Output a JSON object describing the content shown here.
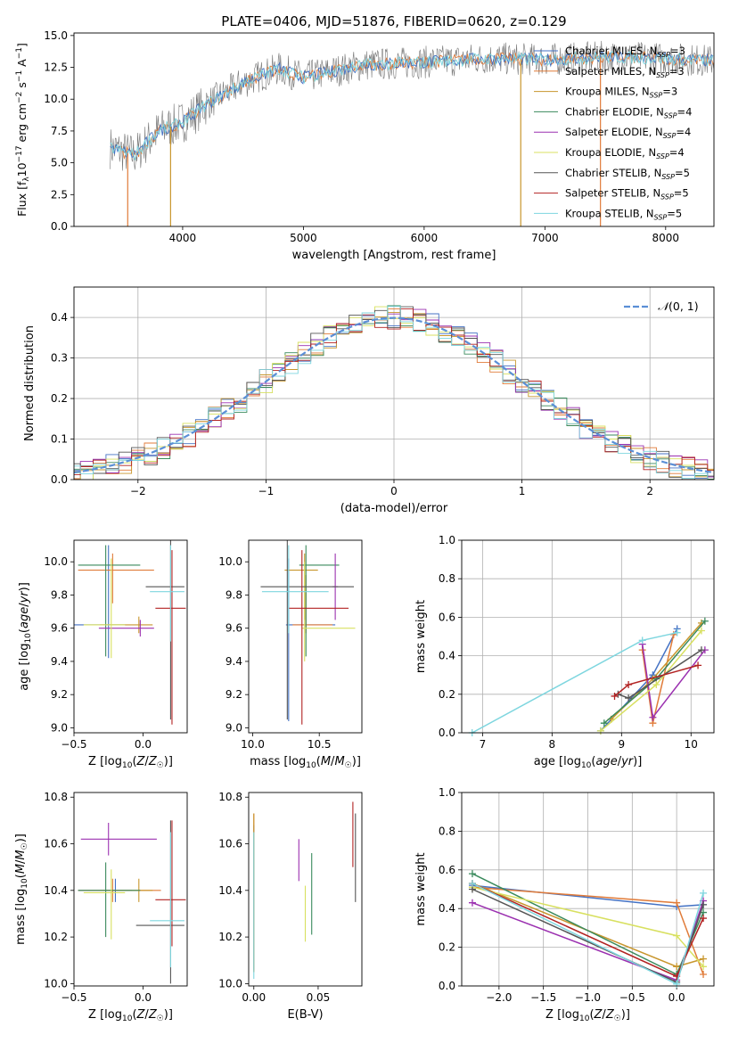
{
  "figure": {
    "title": "PLATE=0406, MJD=51876, FIBERID=0620, z=0.129"
  },
  "series_colors": [
    "#4472c4",
    "#e07b39",
    "#c8962d",
    "#3a8a5c",
    "#9b30b0",
    "#d8e060",
    "#555555",
    "#b22222",
    "#7ed6df"
  ],
  "chart_data": [
    {
      "type": "line",
      "panel": "spectrum",
      "title": "PLATE=0406, MJD=51876, FIBERID=0620, z=0.129",
      "xlabel": "wavelength [Angstrom, rest frame]",
      "ylabel": "Flux [f_λ 10^-17 erg cm^-2 s^-1 A^-1]",
      "xlim": [
        3100,
        8400
      ],
      "ylim": [
        0,
        15.2
      ],
      "xticks": [
        4000,
        5000,
        6000,
        7000,
        8000
      ],
      "yticks": [
        0.0,
        2.5,
        5.0,
        7.5,
        10.0,
        12.5,
        15.0
      ],
      "legend_position": "upper-right",
      "series": [
        {
          "name": "Chabrier MILES, N_SSP=3"
        },
        {
          "name": "Salpeter MILES, N_SSP=3"
        },
        {
          "name": "Kroupa MILES, N_SSP=3"
        },
        {
          "name": "Chabrier ELODIE, N_SSP=4"
        },
        {
          "name": "Salpeter ELODIE, N_SSP=4"
        },
        {
          "name": "Kroupa ELODIE, N_SSP=4"
        },
        {
          "name": "Chabrier STELIB, N_SSP=5"
        },
        {
          "name": "Salpeter STELIB, N_SSP=5"
        },
        {
          "name": "Kroupa STELIB, N_SSP=5"
        }
      ],
      "continuum_x": [
        3400,
        3600,
        3800,
        4000,
        4200,
        4500,
        4800,
        5000,
        5500,
        6000,
        6500,
        7000,
        7500,
        8000,
        8400
      ],
      "continuum_y": [
        6.2,
        5.6,
        7.5,
        8.2,
        9.6,
        11.3,
        12.4,
        11.7,
        12.7,
        12.9,
        13.2,
        13.1,
        13.3,
        13.2,
        13.0
      ]
    },
    {
      "type": "step",
      "panel": "residuals",
      "xlabel": "(data-model)/error",
      "ylabel": "Normed distribution",
      "xlim": [
        -2.5,
        2.5
      ],
      "ylim": [
        0,
        0.475
      ],
      "xticks": [
        -2,
        -1,
        0,
        1,
        2
      ],
      "yticks": [
        0.0,
        0.1,
        0.2,
        0.3,
        0.4
      ],
      "legend": "N(0,1)",
      "bin_width": 0.1,
      "grid": true
    },
    {
      "type": "errorbar",
      "panel": "age-vs-Z",
      "xlabel": "Z [log10(Z/Z☉)]",
      "ylabel": "age  [log10(age/yr)]",
      "xlim": [
        -0.5,
        0.32
      ],
      "ylim": [
        8.97,
        10.13
      ],
      "xticks": [
        -0.5,
        0.0
      ],
      "yticks": [
        9.0,
        9.2,
        9.4,
        9.6,
        9.8,
        10.0
      ],
      "points": [
        {
          "x": -0.25,
          "y": 9.62,
          "xerr": [
            0.27,
            0.12
          ],
          "yerr": [
            0.2,
            0.48
          ]
        },
        {
          "x": -0.22,
          "y": 9.95,
          "xerr": [
            0.25,
            0.3
          ],
          "yerr": [
            0.2,
            0.1
          ]
        },
        {
          "x": -0.03,
          "y": 9.62,
          "xerr": [
            0.28,
            0.1
          ],
          "yerr": [
            0.05,
            0.05
          ]
        },
        {
          "x": -0.27,
          "y": 9.98,
          "xerr": [
            0.2,
            0.25
          ],
          "yerr": [
            0.55,
            0.12
          ]
        },
        {
          "x": -0.02,
          "y": 9.6,
          "xerr": [
            0.3,
            0.1
          ],
          "yerr": [
            0.05,
            0.05
          ]
        },
        {
          "x": -0.23,
          "y": 9.62,
          "xerr": [
            0.2,
            0.1
          ],
          "yerr": [
            0.2,
            0.4
          ]
        },
        {
          "x": 0.2,
          "y": 9.85,
          "xerr": [
            0.18,
            0.1
          ],
          "yerr": [
            0.8,
            0.28
          ]
        },
        {
          "x": 0.21,
          "y": 9.72,
          "xerr": [
            0.12,
            0.1
          ],
          "yerr": [
            0.7,
            0.35
          ]
        },
        {
          "x": 0.2,
          "y": 9.82,
          "xerr": [
            0.15,
            0.1
          ],
          "yerr": [
            0.3,
            0.28
          ]
        }
      ]
    },
    {
      "type": "errorbar",
      "panel": "age-vs-mass",
      "xlabel": "mass [log10(M/M☉)]",
      "ylabel": "",
      "xlim": [
        9.97,
        10.82
      ],
      "ylim": [
        8.97,
        10.13
      ],
      "xticks": [
        10.0,
        10.5
      ],
      "yticks": [
        9.0,
        9.2,
        9.4,
        9.6,
        9.8,
        10.0
      ],
      "points": [
        {
          "x": 10.27,
          "y": 9.62,
          "xerr": [
            0.02,
            0.35
          ],
          "yerr": [
            0.58,
            0.4
          ]
        },
        {
          "x": 10.4,
          "y": 9.62,
          "xerr": [
            0.1,
            0.2
          ],
          "yerr": [
            0.05,
            0.3
          ]
        },
        {
          "x": 10.39,
          "y": 9.95,
          "xerr": [
            0.15,
            0.1
          ],
          "yerr": [
            0.3,
            0.1
          ]
        },
        {
          "x": 10.4,
          "y": 9.98,
          "xerr": [
            0.05,
            0.25
          ],
          "yerr": [
            0.55,
            0.12
          ]
        },
        {
          "x": 10.62,
          "y": 9.85,
          "xerr": [
            0.02,
            0.02
          ],
          "yerr": [
            0.2,
            0.2
          ]
        },
        {
          "x": 10.39,
          "y": 9.6,
          "xerr": [
            0.02,
            0.38
          ],
          "yerr": [
            0.2,
            0.4
          ]
        },
        {
          "x": 10.26,
          "y": 9.85,
          "xerr": [
            0.2,
            0.5
          ],
          "yerr": [
            0.8,
            0.28
          ]
        },
        {
          "x": 10.37,
          "y": 9.72,
          "xerr": [
            0.1,
            0.35
          ],
          "yerr": [
            0.7,
            0.35
          ]
        },
        {
          "x": 10.27,
          "y": 9.82,
          "xerr": [
            0.2,
            0.3
          ],
          "yerr": [
            0.25,
            0.28
          ]
        }
      ]
    },
    {
      "type": "line",
      "panel": "mass-weight-vs-age",
      "xlabel": "age  [log10(age/yr)]",
      "ylabel": "mass weight",
      "xlim": [
        6.7,
        10.33
      ],
      "ylim": [
        0,
        1.0
      ],
      "xticks": [
        7,
        8,
        9,
        10
      ],
      "yticks": [
        0.0,
        0.2,
        0.4,
        0.6,
        0.8,
        1.0
      ],
      "grid": true,
      "series": [
        {
          "x": [
            8.7,
            9.45,
            9.8
          ],
          "y": [
            0.01,
            0.3,
            0.54
          ]
        },
        {
          "x": [
            9.3,
            9.45,
            9.75
          ],
          "y": [
            0.43,
            0.05,
            0.51
          ]
        },
        {
          "x": [
            8.85,
            9.45,
            10.15
          ],
          "y": [
            0.07,
            0.28,
            0.57
          ]
        },
        {
          "x": [
            8.75,
            9.5,
            10.2
          ],
          "y": [
            0.05,
            0.28,
            0.58
          ]
        },
        {
          "x": [
            9.3,
            9.45,
            10.2
          ],
          "y": [
            0.46,
            0.08,
            0.43
          ]
        },
        {
          "x": [
            8.7,
            9.5,
            10.15
          ],
          "y": [
            0.01,
            0.25,
            0.53
          ]
        },
        {
          "x": [
            8.95,
            9.1,
            10.15
          ],
          "y": [
            0.2,
            0.18,
            0.43
          ]
        },
        {
          "x": [
            8.9,
            9.1,
            10.1
          ],
          "y": [
            0.19,
            0.25,
            0.35
          ]
        },
        {
          "x": [
            6.85,
            9.3,
            9.8
          ],
          "y": [
            0.0,
            0.48,
            0.52
          ]
        }
      ]
    },
    {
      "type": "errorbar",
      "panel": "mass-vs-Z",
      "xlabel": "Z [log10(Z/Z☉)]",
      "ylabel": "mass [log10(M/M☉)]",
      "xlim": [
        -0.5,
        0.32
      ],
      "ylim": [
        9.99,
        10.82
      ],
      "xticks": [
        -0.5,
        0.0
      ],
      "yticks": [
        10.0,
        10.2,
        10.4,
        10.6,
        10.8
      ],
      "points": [
        {
          "x": -0.2,
          "y": 10.4,
          "xerr": [
            0.27,
            0.12
          ],
          "yerr": [
            0.05,
            0.05
          ]
        },
        {
          "x": -0.22,
          "y": 10.4,
          "xerr": [
            0.25,
            0.35
          ],
          "yerr": [
            0.05,
            0.05
          ]
        },
        {
          "x": -0.03,
          "y": 10.4,
          "xerr": [
            0.28,
            0.1
          ],
          "yerr": [
            0.05,
            0.05
          ]
        },
        {
          "x": -0.27,
          "y": 10.4,
          "xerr": [
            0.2,
            0.25
          ],
          "yerr": [
            0.2,
            0.12
          ]
        },
        {
          "x": -0.25,
          "y": 10.62,
          "xerr": [
            0.2,
            0.35
          ],
          "yerr": [
            0.07,
            0.07
          ]
        },
        {
          "x": -0.23,
          "y": 10.39,
          "xerr": [
            0.2,
            0.1
          ],
          "yerr": [
            0.2,
            0.1
          ]
        },
        {
          "x": 0.2,
          "y": 10.25,
          "xerr": [
            0.25,
            0.1
          ],
          "yerr": [
            0.25,
            0.45
          ]
        },
        {
          "x": 0.21,
          "y": 10.36,
          "xerr": [
            0.12,
            0.1
          ],
          "yerr": [
            0.2,
            0.34
          ]
        },
        {
          "x": 0.2,
          "y": 10.27,
          "xerr": [
            0.15,
            0.1
          ],
          "yerr": [
            0.2,
            0.38
          ]
        }
      ]
    },
    {
      "type": "errorbar",
      "panel": "mass-vs-EBV",
      "xlabel": "E(B-V)",
      "ylabel": "",
      "xlim": [
        -0.004,
        0.084
      ],
      "ylim": [
        9.99,
        10.82
      ],
      "xticks": [
        0.0,
        0.05
      ],
      "yticks": [
        10.0,
        10.2,
        10.4,
        10.6,
        10.8
      ],
      "points": [
        {
          "x": 0.0,
          "y": 10.38,
          "xerr": [
            0,
            0
          ],
          "yerr": [
            0.32,
            0.3
          ]
        },
        {
          "x": 0.0,
          "y": 10.4,
          "xerr": [
            0,
            0
          ],
          "yerr": [
            0.35,
            0.33
          ]
        },
        {
          "x": 0.0,
          "y": 10.45,
          "xerr": [
            0,
            0
          ],
          "yerr": [
            0.4,
            0.28
          ]
        },
        {
          "x": 0.045,
          "y": 10.38,
          "xerr": [
            0,
            0
          ],
          "yerr": [
            0.17,
            0.18
          ]
        },
        {
          "x": 0.035,
          "y": 10.53,
          "xerr": [
            0,
            0
          ],
          "yerr": [
            0.09,
            0.09
          ]
        },
        {
          "x": 0.04,
          "y": 10.3,
          "xerr": [
            0,
            0
          ],
          "yerr": [
            0.12,
            0.12
          ]
        },
        {
          "x": 0.079,
          "y": 10.57,
          "xerr": [
            0,
            0
          ],
          "yerr": [
            0.22,
            0.16
          ]
        },
        {
          "x": 0.077,
          "y": 10.58,
          "xerr": [
            0,
            0
          ],
          "yerr": [
            0.08,
            0.2
          ]
        },
        {
          "x": 0.0,
          "y": 10.35,
          "xerr": [
            0,
            0
          ],
          "yerr": [
            0.33,
            0.3
          ]
        }
      ]
    },
    {
      "type": "line",
      "panel": "mass-weight-vs-Z",
      "xlabel": "Z [log10(Z/Z☉)]",
      "ylabel": "mass weight",
      "xlim": [
        -2.42,
        0.42
      ],
      "ylim": [
        0,
        1.0
      ],
      "xticks": [
        -2.0,
        -1.5,
        -1.0,
        -0.5,
        0.0
      ],
      "yticks": [
        0.0,
        0.2,
        0.4,
        0.6,
        0.8,
        1.0
      ],
      "grid": true,
      "series": [
        {
          "x": [
            -2.3,
            0.0,
            0.3
          ],
          "y": [
            0.52,
            0.41,
            0.42
          ]
        },
        {
          "x": [
            -2.3,
            0.0,
            0.3
          ],
          "y": [
            0.51,
            0.43,
            0.06
          ]
        },
        {
          "x": [
            -2.3,
            0.0,
            0.3
          ],
          "y": [
            0.53,
            0.1,
            0.14
          ]
        },
        {
          "x": [
            -2.3,
            0.0,
            0.3
          ],
          "y": [
            0.58,
            0.06,
            0.38
          ]
        },
        {
          "x": [
            -2.3,
            0.0,
            0.3
          ],
          "y": [
            0.43,
            0.03,
            0.44
          ]
        },
        {
          "x": [
            -2.3,
            0.0,
            0.3
          ],
          "y": [
            0.51,
            0.26,
            0.1
          ]
        },
        {
          "x": [
            -2.3,
            0.0,
            0.3
          ],
          "y": [
            0.5,
            0.02,
            0.42
          ]
        },
        {
          "x": [
            -2.3,
            0.0,
            0.3
          ],
          "y": [
            0.53,
            0.05,
            0.35
          ]
        },
        {
          "x": [
            -2.3,
            0.0,
            0.3
          ],
          "y": [
            0.53,
            0.01,
            0.48
          ]
        }
      ]
    }
  ]
}
